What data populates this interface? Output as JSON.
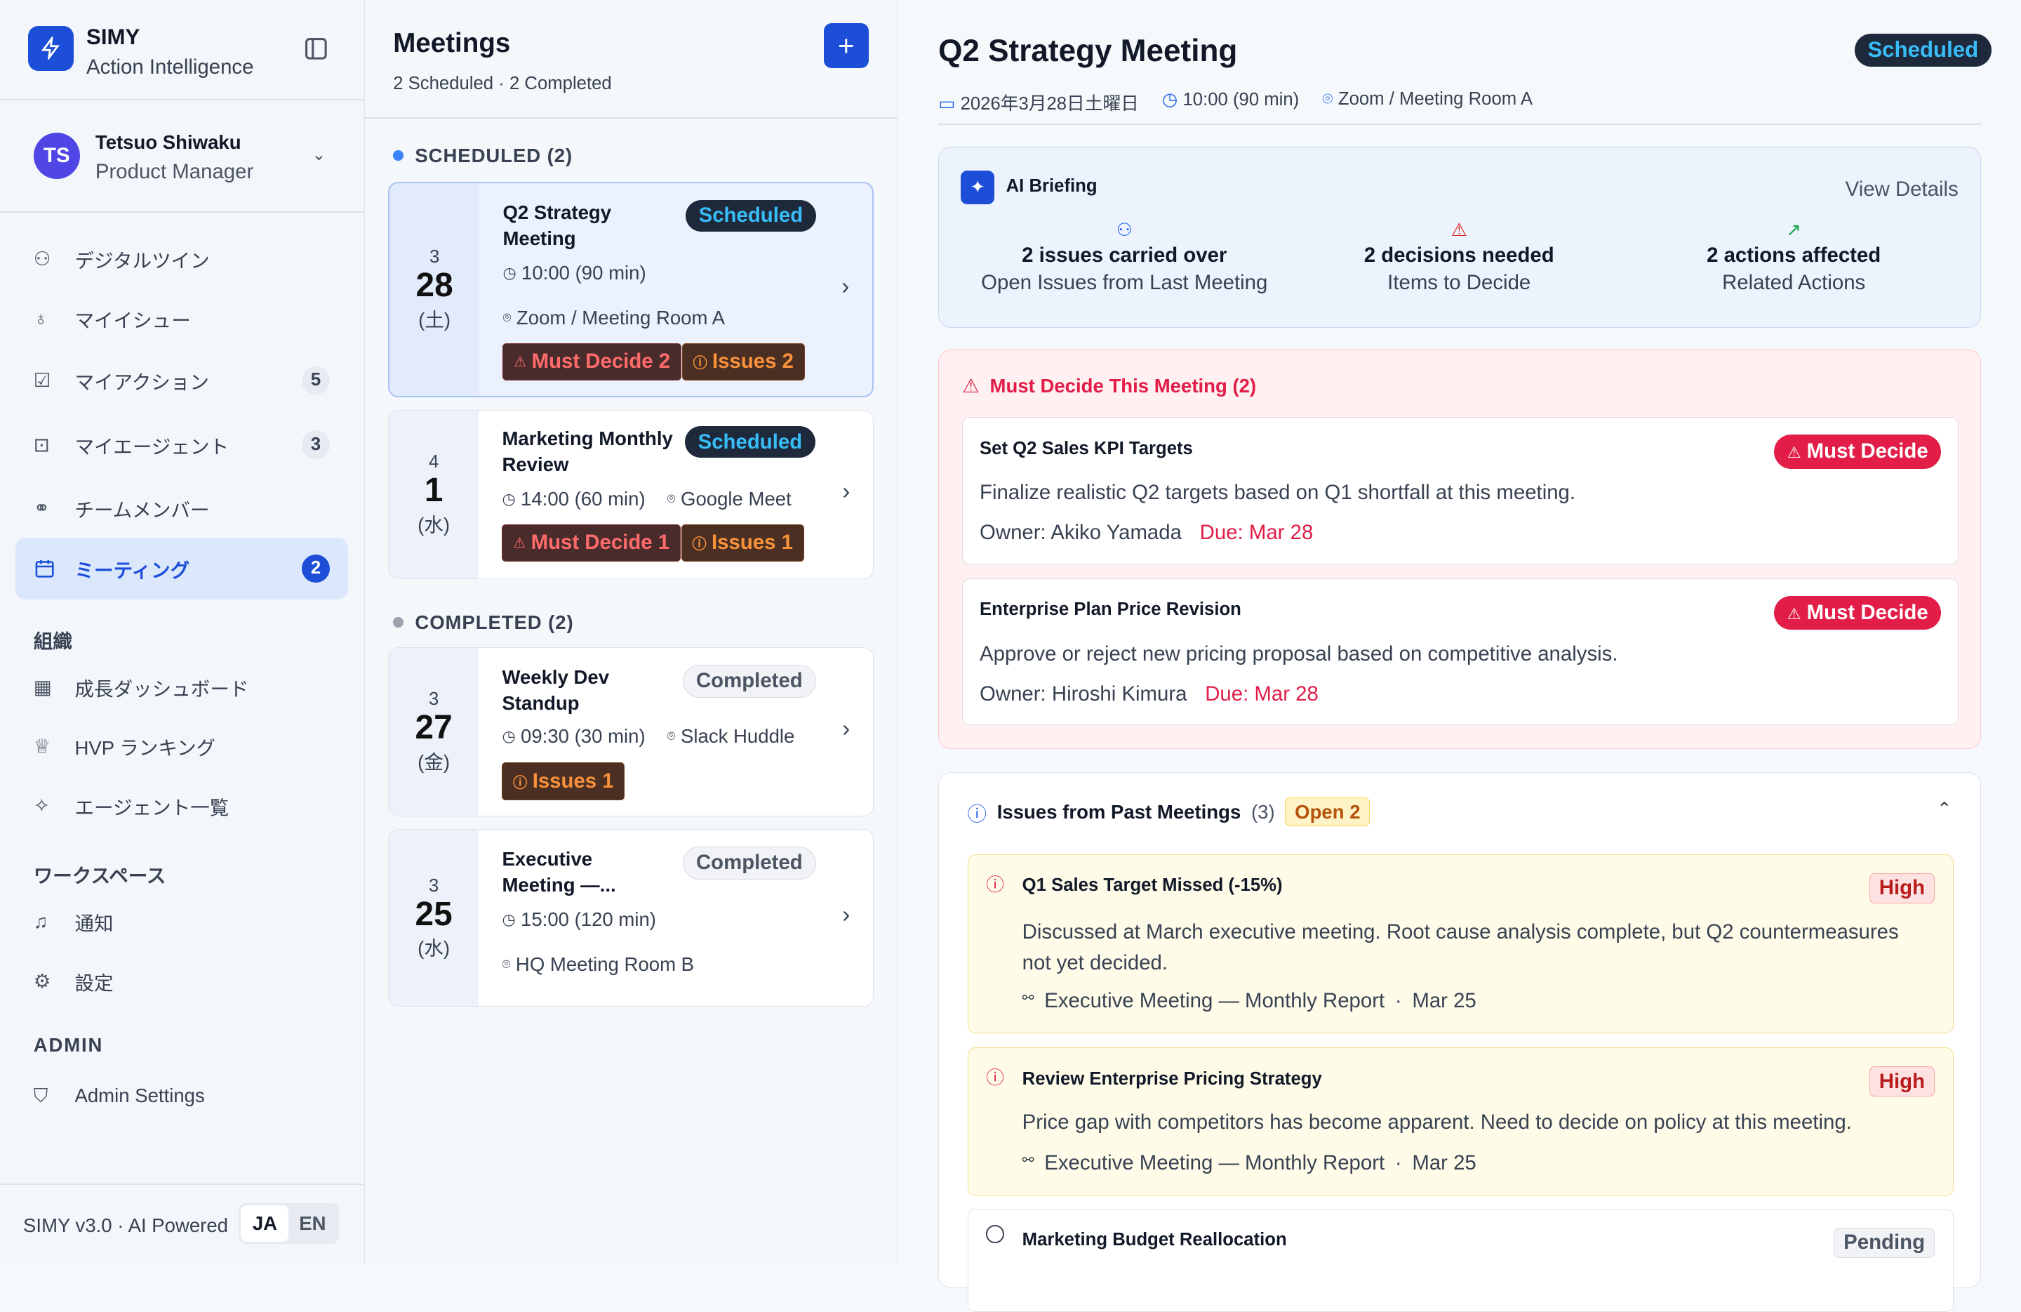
{
  "app": {
    "name": "SIMY",
    "subtitle": "Action Intelligence",
    "version": "SIMY v3.0 · AI Powered",
    "lang": [
      "JA",
      "EN"
    ]
  },
  "user": {
    "initials": "TS",
    "name": "Tetsuo Shiwaku",
    "role": "Product Manager"
  },
  "nav": [
    {
      "label": "デジタルツイン",
      "icon": "brain-icon"
    },
    {
      "label": "マイイシュー",
      "icon": "lightbulb-icon"
    },
    {
      "label": "マイアクション",
      "icon": "check-square-icon",
      "count": "5"
    },
    {
      "label": "マイエージェント",
      "icon": "bot-icon",
      "count": "3"
    },
    {
      "label": "チームメンバー",
      "icon": "users-icon"
    },
    {
      "label": "ミーティング",
      "icon": "calendar-icon",
      "count": "2",
      "active": true
    }
  ],
  "org": {
    "heading": "組織",
    "items": [
      "成長ダッシュボード",
      "HVP ランキング",
      "エージェント一覧"
    ]
  },
  "workspace": {
    "heading": "ワークスペース",
    "items": [
      "通知",
      "設定"
    ]
  },
  "admin": {
    "heading": "ADMIN",
    "items": [
      "Admin Settings"
    ]
  },
  "meetings": {
    "title": "Meetings",
    "summary": "2 Scheduled · 2 Completed",
    "add": "+",
    "scheduled_heading": "SCHEDULED (2)",
    "completed_heading": "COMPLETED (2)",
    "items": [
      {
        "month": "3",
        "day": "28",
        "weekday": "(土)",
        "title": "Q2 Strategy Meeting",
        "status": "Scheduled",
        "time": "10:00 (90 min)",
        "location": "Zoom / Meeting Room A",
        "must": "Must Decide 2",
        "issues": "Issues 2"
      },
      {
        "month": "4",
        "day": "1",
        "weekday": "(水)",
        "title": "Marketing Monthly Review",
        "status": "Scheduled",
        "time": "14:00 (60 min)",
        "location": "Google Meet",
        "must": "Must Decide 1",
        "issues": "Issues 1"
      },
      {
        "month": "3",
        "day": "27",
        "weekday": "(金)",
        "title": "Weekly Dev Standup",
        "status": "Completed",
        "time": "09:30 (30 min)",
        "location": "Slack Huddle",
        "issues": "Issues 1"
      },
      {
        "month": "3",
        "day": "25",
        "weekday": "(水)",
        "title": "Executive Meeting —...",
        "status": "Completed",
        "time": "15:00 (120 min)",
        "location": "HQ Meeting Room B"
      }
    ]
  },
  "detail": {
    "title": "Q2 Strategy Meeting",
    "status": "Scheduled",
    "date": "2026年3月28日土曜日",
    "time": "10:00 (90 min)",
    "location": "Zoom / Meeting Room A",
    "briefing": {
      "title": "AI Briefing",
      "view": "View Details",
      "stats": [
        {
          "value": "2 issues carried over",
          "label": "Open Issues from Last Meeting",
          "color": "#2563eb"
        },
        {
          "value": "2 decisions needed",
          "label": "Items to Decide",
          "color": "#dc2626"
        },
        {
          "value": "2 actions affected",
          "label": "Related Actions",
          "color": "#16a34a"
        }
      ]
    },
    "must": {
      "title": "Must Decide This Meeting (2)",
      "badge": "Must Decide",
      "items": [
        {
          "title": "Set Q2 Sales KPI Targets",
          "desc": "Finalize realistic Q2 targets based on Q1 shortfall at this meeting.",
          "owner": "Owner: Akiko Yamada",
          "due": "Due: Mar 28"
        },
        {
          "title": "Enterprise Plan Price Revision",
          "desc": "Approve or reject new pricing proposal based on competitive analysis.",
          "owner": "Owner: Hiroshi Kimura",
          "due": "Due: Mar 28"
        }
      ]
    },
    "issues": {
      "title": "Issues from Past Meetings",
      "count": "(3)",
      "open": "Open 2",
      "items": [
        {
          "title": "Q1 Sales Target Missed (-15%)",
          "priority": "High",
          "desc": "Discussed at March executive meeting. Root cause analysis complete, but Q2 countermeasures not yet decided.",
          "source": "Executive Meeting — Monthly Report",
          "date": "Mar 25"
        },
        {
          "title": "Review Enterprise Pricing Strategy",
          "priority": "High",
          "desc": "Price gap with competitors has become apparent. Need to decide on policy at this meeting.",
          "source": "Executive Meeting — Monthly Report",
          "date": "Mar 25"
        },
        {
          "title": "Marketing Budget Reallocation",
          "priority": "Pending"
        }
      ]
    }
  }
}
